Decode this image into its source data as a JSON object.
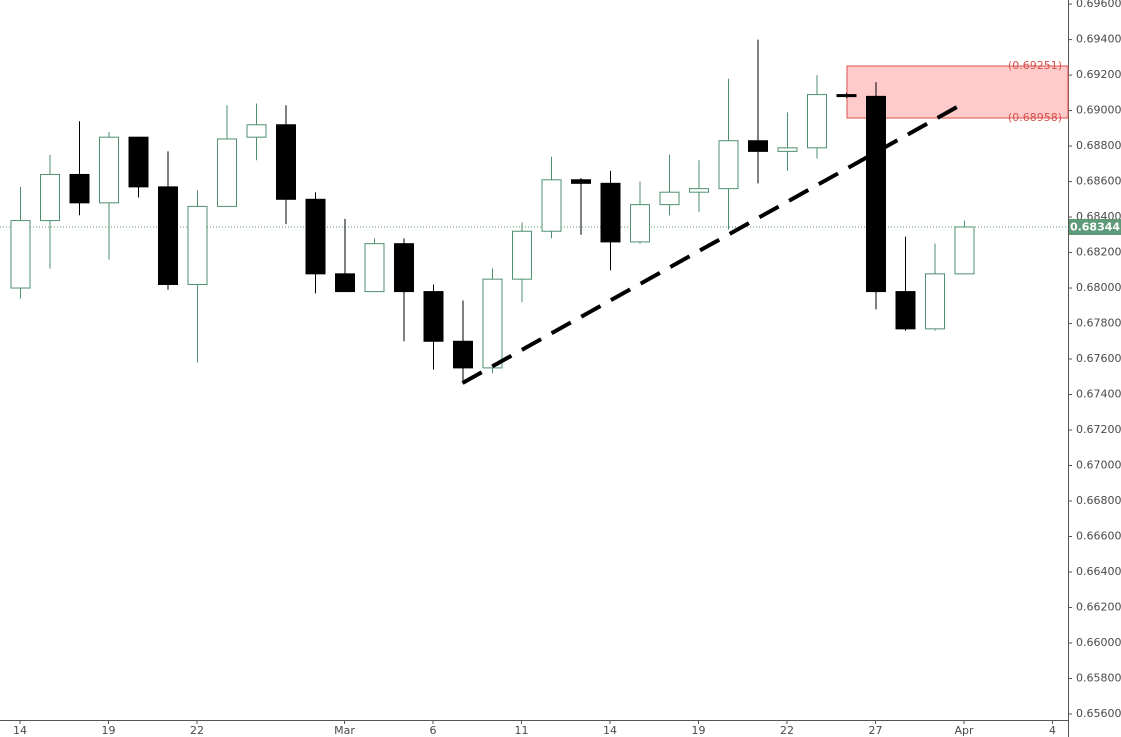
{
  "chart_data": {
    "type": "candlestick",
    "categories": [
      "14",
      null,
      null,
      "19",
      null,
      null,
      "22",
      null,
      null,
      null,
      null,
      "Mar",
      null,
      null,
      "6",
      null,
      null,
      "11",
      null,
      null,
      "14",
      null,
      null,
      "19",
      null,
      null,
      "22",
      null,
      null,
      "27",
      null,
      null,
      "Apr",
      null,
      null,
      "4"
    ],
    "open": [
      0.68,
      0.6838,
      0.6864,
      0.6848,
      0.6885,
      0.6857,
      0.6802,
      0.6846,
      0.6885,
      0.6892,
      0.685,
      0.6808,
      0.6798,
      0.6825,
      0.6798,
      0.677,
      0.6755,
      0.6805,
      0.6832,
      0.6861,
      0.6859,
      0.6826,
      0.6847,
      0.6854,
      0.6856,
      0.6883,
      0.6877,
      0.6879,
      0.6909,
      0.6908,
      0.6798,
      0.6777,
      0.6808,
      null,
      null,
      null
    ],
    "high": [
      0.6857,
      0.6875,
      0.6894,
      0.6888,
      0.6885,
      0.6877,
      0.6855,
      0.6903,
      0.6904,
      0.6903,
      0.6854,
      0.6839,
      0.6828,
      0.6828,
      0.6802,
      0.6793,
      0.6811,
      0.6837,
      0.6874,
      0.6862,
      0.6866,
      0.686,
      0.6875,
      0.6872,
      0.6918,
      0.694,
      0.6899,
      0.692,
      0.691,
      0.6916,
      0.6829,
      0.6825,
      0.6838,
      null,
      null,
      null
    ],
    "low": [
      0.6794,
      0.6811,
      0.6841,
      0.6816,
      0.6851,
      0.6799,
      0.6758,
      0.6846,
      0.6872,
      0.6836,
      0.6797,
      0.6798,
      0.6798,
      0.677,
      0.6754,
      0.6748,
      0.6752,
      0.6792,
      0.6828,
      0.683,
      0.681,
      0.6825,
      0.6841,
      0.6843,
      0.6833,
      0.6859,
      0.6866,
      0.6873,
      0.6907,
      0.6788,
      0.6776,
      0.6776,
      0.6808,
      null,
      null,
      null
    ],
    "close": [
      0.6838,
      0.6864,
      0.6848,
      0.6885,
      0.6857,
      0.6802,
      0.6846,
      0.6884,
      0.6892,
      0.685,
      0.6808,
      0.6798,
      0.6825,
      0.6798,
      0.677,
      0.6755,
      0.6805,
      0.6832,
      0.6861,
      0.6859,
      0.6826,
      0.6847,
      0.6854,
      0.6856,
      0.6883,
      0.6877,
      0.6879,
      0.6909,
      0.6908,
      0.6798,
      0.6777,
      0.6808,
      0.68344,
      null,
      null,
      null
    ],
    "up_color": "#ffffff",
    "up_border": "#4f8f6e",
    "down_color": "#000000",
    "ylim": [
      0.65566,
      0.69623
    ],
    "yticks": [
      {
        "value": 0.656,
        "label": "0.65600"
      },
      {
        "value": 0.658,
        "label": "0.65800"
      },
      {
        "value": 0.66,
        "label": "0.66000"
      },
      {
        "value": 0.662,
        "label": "0.66200"
      },
      {
        "value": 0.664,
        "label": "0.66400"
      },
      {
        "value": 0.666,
        "label": "0.66600"
      },
      {
        "value": 0.668,
        "label": "0.66800"
      },
      {
        "value": 0.67,
        "label": "0.67000"
      },
      {
        "value": 0.672,
        "label": "0.67200"
      },
      {
        "value": 0.674,
        "label": "0.67400"
      },
      {
        "value": 0.676,
        "label": "0.67600"
      },
      {
        "value": 0.678,
        "label": "0.67800"
      },
      {
        "value": 0.68,
        "label": "0.68000"
      },
      {
        "value": 0.682,
        "label": "0.68200"
      },
      {
        "value": 0.684,
        "label": "0.68400"
      },
      {
        "value": 0.686,
        "label": "0.68600"
      },
      {
        "value": 0.688,
        "label": "0.68800"
      },
      {
        "value": 0.69,
        "label": "0.69000"
      },
      {
        "value": 0.692,
        "label": "0.69200"
      },
      {
        "value": 0.694,
        "label": "0.69400"
      },
      {
        "value": 0.696,
        "label": "0.69600"
      }
    ],
    "last_price": 0.68344,
    "last_price_color": "#5e9a78",
    "zone": {
      "values": [
        0.69251,
        0.68958
      ],
      "value_labels": [
        "(0.69251)",
        "(0.68958)"
      ],
      "color": "#ffcaca",
      "border": "#d9534f"
    },
    "trendline": {
      "values": [
        0.67465,
        0.69042
      ],
      "color": "#000000"
    }
  }
}
